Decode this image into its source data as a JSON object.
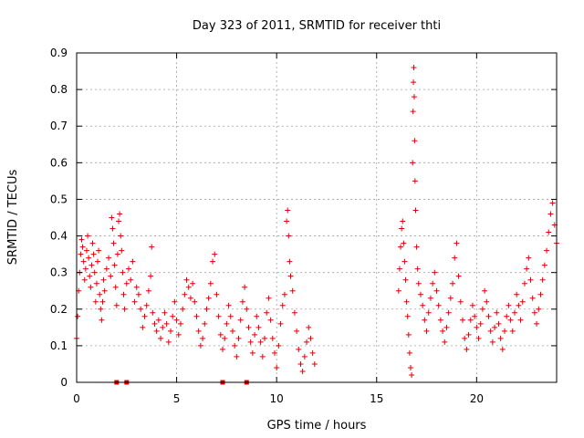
{
  "chart_data": {
    "type": "scatter",
    "title": "Day 323 of 2011, SRMTID for receiver thti",
    "xlabel": "GPS time / hours",
    "ylabel": "SRMTID / TECUs",
    "xlim": [
      0,
      24
    ],
    "ylim": [
      0,
      0.9
    ],
    "x_ticks": [
      0,
      5,
      10,
      15,
      20
    ],
    "x_tick_labels": [
      "0",
      "5",
      "10",
      "15",
      "20"
    ],
    "y_ticks": [
      0,
      0.1,
      0.2,
      0.3,
      0.4,
      0.5,
      0.6,
      0.7,
      0.8,
      0.9
    ],
    "y_tick_labels": [
      "0",
      "0.1",
      "0.2",
      "0.3",
      "0.4",
      "0.5",
      "0.6",
      "0.7",
      "0.8",
      "0.9"
    ],
    "grid": true,
    "marker": "plus",
    "marker_color": "#e00000",
    "series": [
      {
        "name": "SRMTID",
        "points": [
          [
            0.0,
            0.12
          ],
          [
            0.05,
            0.18
          ],
          [
            0.1,
            0.25
          ],
          [
            0.15,
            0.3
          ],
          [
            0.2,
            0.35
          ],
          [
            0.25,
            0.39
          ],
          [
            0.3,
            0.37
          ],
          [
            0.35,
            0.33
          ],
          [
            0.4,
            0.28
          ],
          [
            0.45,
            0.31
          ],
          [
            0.5,
            0.36
          ],
          [
            0.55,
            0.4
          ],
          [
            0.6,
            0.34
          ],
          [
            0.65,
            0.29
          ],
          [
            0.7,
            0.26
          ],
          [
            0.75,
            0.32
          ],
          [
            0.8,
            0.38
          ],
          [
            0.85,
            0.35
          ],
          [
            0.9,
            0.3
          ],
          [
            0.95,
            0.22
          ],
          [
            1.0,
            0.27
          ],
          [
            1.05,
            0.33
          ],
          [
            1.1,
            0.36
          ],
          [
            1.15,
            0.24
          ],
          [
            1.2,
            0.2
          ],
          [
            1.25,
            0.17
          ],
          [
            1.3,
            0.22
          ],
          [
            1.35,
            0.28
          ],
          [
            1.4,
            0.25
          ],
          [
            1.5,
            0.31
          ],
          [
            1.6,
            0.34
          ],
          [
            1.7,
            0.29
          ],
          [
            1.75,
            0.45
          ],
          [
            1.8,
            0.42
          ],
          [
            1.85,
            0.38
          ],
          [
            1.9,
            0.32
          ],
          [
            1.95,
            0.26
          ],
          [
            2.0,
            0.21
          ],
          [
            2.05,
            0.35
          ],
          [
            2.1,
            0.44
          ],
          [
            2.15,
            0.46
          ],
          [
            2.2,
            0.4
          ],
          [
            2.25,
            0.36
          ],
          [
            2.3,
            0.3
          ],
          [
            2.35,
            0.24
          ],
          [
            2.4,
            0.2
          ],
          [
            2.5,
            0.27
          ],
          [
            2.6,
            0.31
          ],
          [
            2.7,
            0.28
          ],
          [
            2.8,
            0.33
          ],
          [
            2.9,
            0.22
          ],
          [
            3.0,
            0.26
          ],
          [
            3.1,
            0.24
          ],
          [
            3.2,
            0.2
          ],
          [
            3.3,
            0.15
          ],
          [
            3.4,
            0.18
          ],
          [
            3.5,
            0.21
          ],
          [
            3.6,
            0.25
          ],
          [
            3.7,
            0.29
          ],
          [
            3.75,
            0.37
          ],
          [
            3.8,
            0.19
          ],
          [
            3.9,
            0.16
          ],
          [
            4.0,
            0.14
          ],
          [
            4.1,
            0.17
          ],
          [
            4.2,
            0.12
          ],
          [
            4.3,
            0.15
          ],
          [
            4.4,
            0.19
          ],
          [
            4.5,
            0.16
          ],
          [
            4.6,
            0.11
          ],
          [
            4.7,
            0.14
          ],
          [
            4.8,
            0.18
          ],
          [
            4.9,
            0.22
          ],
          [
            5.0,
            0.17
          ],
          [
            5.1,
            0.13
          ],
          [
            5.2,
            0.16
          ],
          [
            5.3,
            0.2
          ],
          [
            5.4,
            0.24
          ],
          [
            5.5,
            0.28
          ],
          [
            5.6,
            0.26
          ],
          [
            5.7,
            0.23
          ],
          [
            5.8,
            0.27
          ],
          [
            5.9,
            0.22
          ],
          [
            6.0,
            0.18
          ],
          [
            6.1,
            0.14
          ],
          [
            6.2,
            0.1
          ],
          [
            6.3,
            0.12
          ],
          [
            6.4,
            0.16
          ],
          [
            6.5,
            0.2
          ],
          [
            6.6,
            0.23
          ],
          [
            6.7,
            0.27
          ],
          [
            6.8,
            0.33
          ],
          [
            6.9,
            0.35
          ],
          [
            7.0,
            0.24
          ],
          [
            7.1,
            0.18
          ],
          [
            7.2,
            0.13
          ],
          [
            7.3,
            0.09
          ],
          [
            7.4,
            0.12
          ],
          [
            7.5,
            0.16
          ],
          [
            7.6,
            0.21
          ],
          [
            7.7,
            0.18
          ],
          [
            7.8,
            0.14
          ],
          [
            7.9,
            0.1
          ],
          [
            8.0,
            0.07
          ],
          [
            8.1,
            0.12
          ],
          [
            8.2,
            0.17
          ],
          [
            8.3,
            0.22
          ],
          [
            8.4,
            0.26
          ],
          [
            8.5,
            0.2
          ],
          [
            8.6,
            0.15
          ],
          [
            8.7,
            0.11
          ],
          [
            8.8,
            0.08
          ],
          [
            8.9,
            0.13
          ],
          [
            9.0,
            0.18
          ],
          [
            9.1,
            0.15
          ],
          [
            9.2,
            0.11
          ],
          [
            9.3,
            0.07
          ],
          [
            9.4,
            0.12
          ],
          [
            9.5,
            0.19
          ],
          [
            9.6,
            0.23
          ],
          [
            9.7,
            0.17
          ],
          [
            9.8,
            0.12
          ],
          [
            9.9,
            0.08
          ],
          [
            10.0,
            0.04
          ],
          [
            10.1,
            0.1
          ],
          [
            10.2,
            0.16
          ],
          [
            10.3,
            0.21
          ],
          [
            10.4,
            0.24
          ],
          [
            10.5,
            0.44
          ],
          [
            10.55,
            0.47
          ],
          [
            10.6,
            0.4
          ],
          [
            10.65,
            0.33
          ],
          [
            10.7,
            0.29
          ],
          [
            10.8,
            0.25
          ],
          [
            10.9,
            0.19
          ],
          [
            11.0,
            0.14
          ],
          [
            11.1,
            0.09
          ],
          [
            11.2,
            0.05
          ],
          [
            11.3,
            0.03
          ],
          [
            11.4,
            0.07
          ],
          [
            11.5,
            0.11
          ],
          [
            11.6,
            0.15
          ],
          [
            11.7,
            0.12
          ],
          [
            11.8,
            0.08
          ],
          [
            11.9,
            0.05
          ],
          [
            16.1,
            0.25
          ],
          [
            16.15,
            0.31
          ],
          [
            16.2,
            0.37
          ],
          [
            16.25,
            0.42
          ],
          [
            16.3,
            0.44
          ],
          [
            16.35,
            0.38
          ],
          [
            16.4,
            0.33
          ],
          [
            16.45,
            0.28
          ],
          [
            16.5,
            0.22
          ],
          [
            16.55,
            0.18
          ],
          [
            16.6,
            0.13
          ],
          [
            16.65,
            0.08
          ],
          [
            16.7,
            0.04
          ],
          [
            16.75,
            0.02
          ],
          [
            16.8,
            0.6
          ],
          [
            16.82,
            0.74
          ],
          [
            16.84,
            0.82
          ],
          [
            16.86,
            0.86
          ],
          [
            16.88,
            0.78
          ],
          [
            16.9,
            0.66
          ],
          [
            16.92,
            0.55
          ],
          [
            16.95,
            0.47
          ],
          [
            17.0,
            0.37
          ],
          [
            17.05,
            0.31
          ],
          [
            17.1,
            0.27
          ],
          [
            17.2,
            0.24
          ],
          [
            17.3,
            0.21
          ],
          [
            17.4,
            0.17
          ],
          [
            17.5,
            0.14
          ],
          [
            17.6,
            0.19
          ],
          [
            17.7,
            0.23
          ],
          [
            17.8,
            0.27
          ],
          [
            17.9,
            0.3
          ],
          [
            18.0,
            0.25
          ],
          [
            18.1,
            0.21
          ],
          [
            18.2,
            0.17
          ],
          [
            18.3,
            0.14
          ],
          [
            18.4,
            0.11
          ],
          [
            18.5,
            0.15
          ],
          [
            18.6,
            0.19
          ],
          [
            18.7,
            0.23
          ],
          [
            18.8,
            0.27
          ],
          [
            18.9,
            0.34
          ],
          [
            19.0,
            0.38
          ],
          [
            19.1,
            0.29
          ],
          [
            19.2,
            0.22
          ],
          [
            19.3,
            0.17
          ],
          [
            19.4,
            0.12
          ],
          [
            19.5,
            0.09
          ],
          [
            19.6,
            0.13
          ],
          [
            19.7,
            0.17
          ],
          [
            19.8,
            0.21
          ],
          [
            19.9,
            0.18
          ],
          [
            20.0,
            0.15
          ],
          [
            20.1,
            0.12
          ],
          [
            20.2,
            0.16
          ],
          [
            20.3,
            0.2
          ],
          [
            20.4,
            0.25
          ],
          [
            20.5,
            0.22
          ],
          [
            20.6,
            0.18
          ],
          [
            20.7,
            0.14
          ],
          [
            20.8,
            0.11
          ],
          [
            20.9,
            0.15
          ],
          [
            21.0,
            0.19
          ],
          [
            21.1,
            0.16
          ],
          [
            21.2,
            0.12
          ],
          [
            21.3,
            0.09
          ],
          [
            21.4,
            0.14
          ],
          [
            21.5,
            0.18
          ],
          [
            21.6,
            0.21
          ],
          [
            21.7,
            0.17
          ],
          [
            21.8,
            0.14
          ],
          [
            21.9,
            0.19
          ],
          [
            22.0,
            0.24
          ],
          [
            22.1,
            0.21
          ],
          [
            22.2,
            0.17
          ],
          [
            22.3,
            0.22
          ],
          [
            22.4,
            0.27
          ],
          [
            22.5,
            0.31
          ],
          [
            22.6,
            0.34
          ],
          [
            22.7,
            0.28
          ],
          [
            22.8,
            0.23
          ],
          [
            22.9,
            0.19
          ],
          [
            23.0,
            0.16
          ],
          [
            23.1,
            0.2
          ],
          [
            23.2,
            0.24
          ],
          [
            23.3,
            0.28
          ],
          [
            23.4,
            0.32
          ],
          [
            23.5,
            0.36
          ],
          [
            23.6,
            0.41
          ],
          [
            23.7,
            0.46
          ],
          [
            23.8,
            0.49
          ],
          [
            23.9,
            0.43
          ],
          [
            24.0,
            0.38
          ]
        ]
      }
    ],
    "zero_markers": [
      2.0,
      2.5,
      7.3,
      8.5
    ]
  }
}
